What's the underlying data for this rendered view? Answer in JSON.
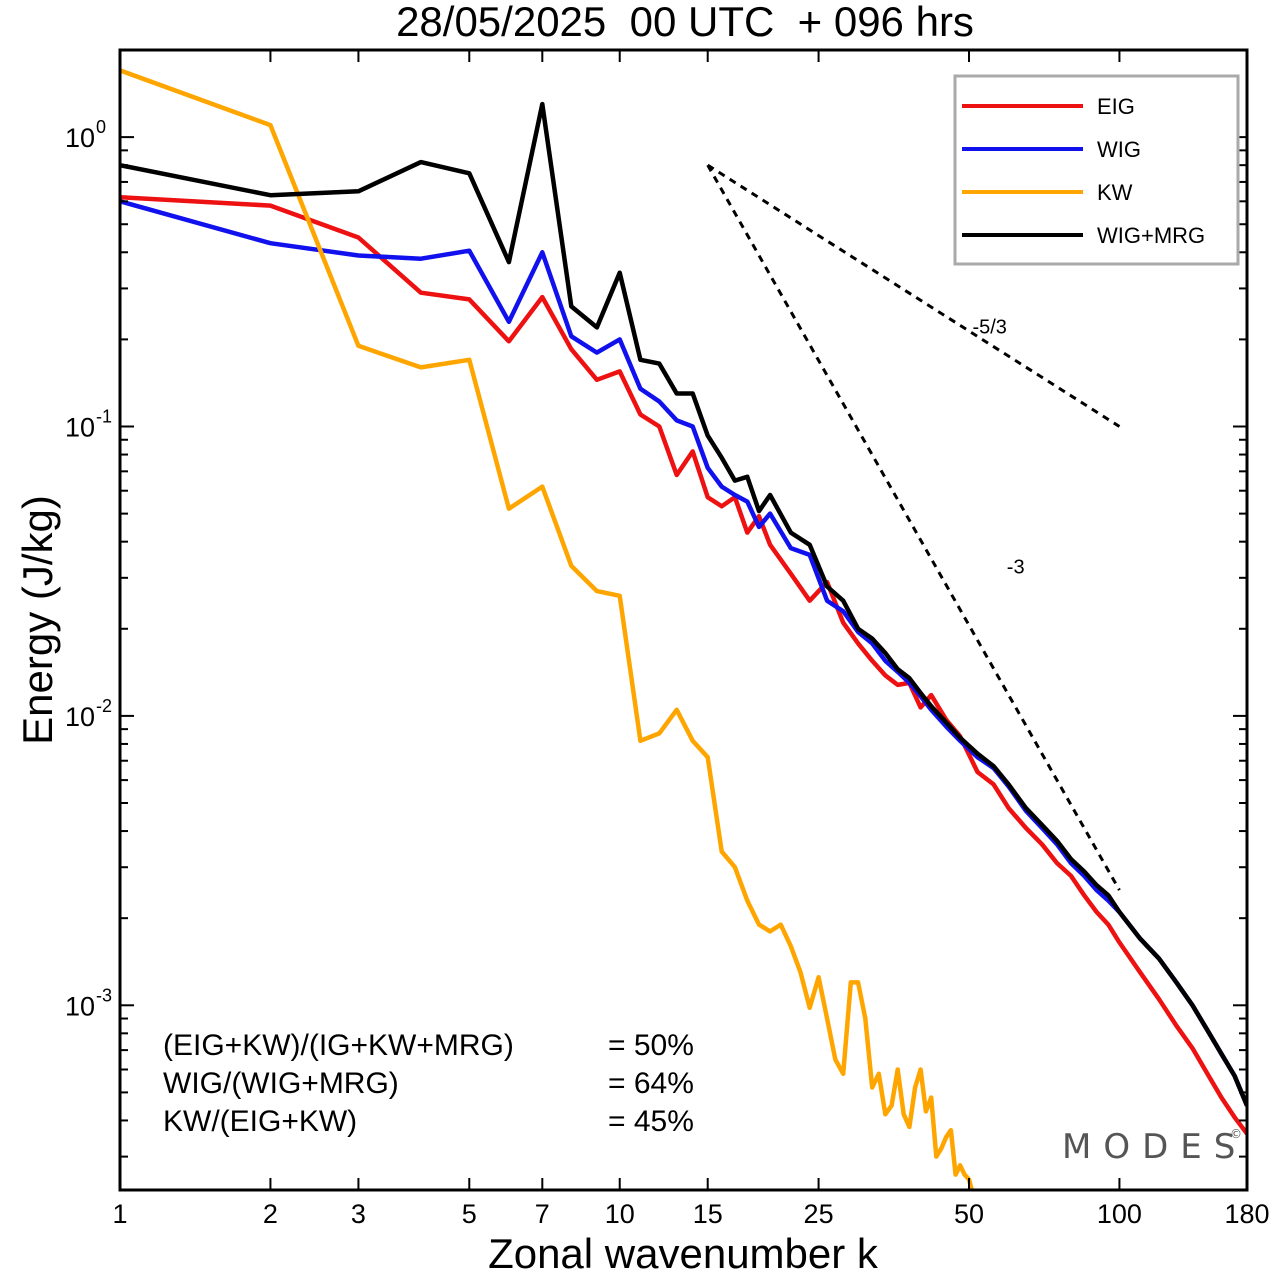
{
  "chart_data": {
    "type": "line",
    "title": "28/05/2025  00 UTC  + 096 hrs",
    "xlabel": "Zonal wavenumber k",
    "ylabel": "Energy (J/kg)",
    "xscale": "log",
    "yscale": "log",
    "xlim": [
      1,
      180
    ],
    "ylim": [
      0.00023,
      2.0
    ],
    "x_ticks": [
      1,
      2,
      3,
      5,
      7,
      10,
      15,
      25,
      50,
      100,
      180
    ],
    "x_tick_labels": [
      "1",
      "2",
      "3",
      "5",
      "7",
      "10",
      "15",
      "25",
      "50",
      "100",
      "180"
    ],
    "y_ticks": [
      {
        "value": 1,
        "base": "10",
        "exp": "0"
      },
      {
        "value": 0.1,
        "base": "10",
        "exp": "-1"
      },
      {
        "value": 0.01,
        "base": "10",
        "exp": "-2"
      },
      {
        "value": 0.001,
        "base": "10",
        "exp": "-3"
      }
    ],
    "legend_position": "top-right",
    "grid": false,
    "series": [
      {
        "name": "EIG",
        "color": "#ee1111",
        "points": [
          [
            1,
            0.62
          ],
          [
            2,
            0.58
          ],
          [
            3,
            0.45
          ],
          [
            4,
            0.29
          ],
          [
            5,
            0.275
          ],
          [
            6,
            0.197
          ],
          [
            7,
            0.28
          ],
          [
            8,
            0.185
          ],
          [
            9,
            0.145
          ],
          [
            10,
            0.155
          ],
          [
            11,
            0.11
          ],
          [
            12,
            0.1
          ],
          [
            13,
            0.068
          ],
          [
            14,
            0.082
          ],
          [
            15,
            0.057
          ],
          [
            16,
            0.053
          ],
          [
            17,
            0.057
          ],
          [
            18,
            0.043
          ],
          [
            19,
            0.049
          ],
          [
            20,
            0.039
          ],
          [
            22,
            0.031
          ],
          [
            24,
            0.025
          ],
          [
            26,
            0.029
          ],
          [
            28,
            0.021
          ],
          [
            30,
            0.0178
          ],
          [
            32,
            0.0155
          ],
          [
            34,
            0.0138
          ],
          [
            36,
            0.0128
          ],
          [
            38,
            0.013
          ],
          [
            40,
            0.0107
          ],
          [
            42,
            0.0118
          ],
          [
            45,
            0.0097
          ],
          [
            48,
            0.0085
          ],
          [
            52,
            0.0064
          ],
          [
            56,
            0.0058
          ],
          [
            60,
            0.0048
          ],
          [
            65,
            0.0041
          ],
          [
            70,
            0.0036
          ],
          [
            75,
            0.0031
          ],
          [
            80,
            0.0028
          ],
          [
            85,
            0.0024
          ],
          [
            90,
            0.0021
          ],
          [
            95,
            0.0019
          ],
          [
            100,
            0.00165
          ],
          [
            110,
            0.0013
          ],
          [
            120,
            0.00105
          ],
          [
            130,
            0.00085
          ],
          [
            140,
            0.00071
          ],
          [
            150,
            0.00058
          ],
          [
            160,
            0.00048
          ],
          [
            170,
            0.00041
          ],
          [
            180,
            0.00036
          ]
        ]
      },
      {
        "name": "WIG",
        "color": "#1111ee",
        "points": [
          [
            1,
            0.6
          ],
          [
            2,
            0.43
          ],
          [
            3,
            0.39
          ],
          [
            4,
            0.38
          ],
          [
            5,
            0.405
          ],
          [
            6,
            0.23
          ],
          [
            7,
            0.4
          ],
          [
            8,
            0.205
          ],
          [
            9,
            0.18
          ],
          [
            10,
            0.2
          ],
          [
            11,
            0.135
          ],
          [
            12,
            0.122
          ],
          [
            13,
            0.105
          ],
          [
            14,
            0.1
          ],
          [
            15,
            0.072
          ],
          [
            16,
            0.062
          ],
          [
            17,
            0.058
          ],
          [
            18,
            0.055
          ],
          [
            19,
            0.045
          ],
          [
            20,
            0.05
          ],
          [
            22,
            0.038
          ],
          [
            24,
            0.036
          ],
          [
            26,
            0.025
          ],
          [
            28,
            0.023
          ],
          [
            30,
            0.0195
          ],
          [
            32,
            0.0178
          ],
          [
            34,
            0.0155
          ],
          [
            36,
            0.0142
          ],
          [
            38,
            0.013
          ],
          [
            40,
            0.0117
          ],
          [
            42,
            0.0105
          ],
          [
            45,
            0.0092
          ],
          [
            48,
            0.0082
          ],
          [
            52,
            0.0072
          ],
          [
            56,
            0.0066
          ],
          [
            60,
            0.0057
          ],
          [
            65,
            0.0047
          ],
          [
            70,
            0.0041
          ],
          [
            75,
            0.0036
          ],
          [
            80,
            0.0031
          ],
          [
            85,
            0.0028
          ],
          [
            90,
            0.0025
          ],
          [
            95,
            0.0023
          ],
          [
            100,
            0.0021
          ],
          [
            110,
            0.0017
          ],
          [
            120,
            0.00145
          ],
          [
            130,
            0.0012
          ],
          [
            140,
            0.001
          ],
          [
            150,
            0.00082
          ],
          [
            160,
            0.00068
          ],
          [
            170,
            0.00057
          ],
          [
            180,
            0.00045
          ]
        ]
      },
      {
        "name": "KW",
        "color": "#ffa500",
        "points": [
          [
            1,
            1.7
          ],
          [
            2,
            1.1
          ],
          [
            3,
            0.19
          ],
          [
            4,
            0.16
          ],
          [
            5,
            0.17
          ],
          [
            6,
            0.052
          ],
          [
            7,
            0.062
          ],
          [
            8,
            0.033
          ],
          [
            9,
            0.027
          ],
          [
            10,
            0.026
          ],
          [
            11,
            0.0082
          ],
          [
            12,
            0.0087
          ],
          [
            13,
            0.0105
          ],
          [
            14,
            0.0082
          ],
          [
            15,
            0.0072
          ],
          [
            16,
            0.0034
          ],
          [
            17,
            0.003
          ],
          [
            18,
            0.0023
          ],
          [
            19,
            0.0019
          ],
          [
            20,
            0.0018
          ],
          [
            21,
            0.0019
          ],
          [
            22,
            0.0016
          ],
          [
            23,
            0.0013
          ],
          [
            24,
            0.00098
          ],
          [
            25,
            0.00125
          ],
          [
            26,
            0.0009
          ],
          [
            27,
            0.00065
          ],
          [
            28,
            0.00058
          ],
          [
            29,
            0.0012
          ],
          [
            30,
            0.0012
          ],
          [
            31,
            0.0009
          ],
          [
            32,
            0.00052
          ],
          [
            33,
            0.00058
          ],
          [
            34,
            0.00042
          ],
          [
            35,
            0.00045
          ],
          [
            36,
            0.0006
          ],
          [
            37,
            0.00042
          ],
          [
            38,
            0.00038
          ],
          [
            39,
            0.00052
          ],
          [
            40,
            0.0006
          ],
          [
            41,
            0.00043
          ],
          [
            42,
            0.00048
          ],
          [
            43,
            0.0003
          ],
          [
            44,
            0.00032
          ],
          [
            45,
            0.00035
          ],
          [
            46,
            0.00037
          ],
          [
            47,
            0.00026
          ],
          [
            48,
            0.00028
          ],
          [
            49,
            0.00026
          ],
          [
            50,
            0.00025
          ],
          [
            51,
            0.00022
          ]
        ]
      },
      {
        "name": "WIG+MRG",
        "color": "#000000",
        "points": [
          [
            1,
            0.8
          ],
          [
            2,
            0.63
          ],
          [
            3,
            0.65
          ],
          [
            4,
            0.82
          ],
          [
            5,
            0.75
          ],
          [
            6,
            0.37
          ],
          [
            7,
            1.3
          ],
          [
            8,
            0.26
          ],
          [
            9,
            0.22
          ],
          [
            10,
            0.34
          ],
          [
            11,
            0.17
          ],
          [
            12,
            0.165
          ],
          [
            13,
            0.13
          ],
          [
            14,
            0.13
          ],
          [
            15,
            0.093
          ],
          [
            16,
            0.078
          ],
          [
            17,
            0.065
          ],
          [
            18,
            0.067
          ],
          [
            19,
            0.051
          ],
          [
            20,
            0.058
          ],
          [
            22,
            0.043
          ],
          [
            24,
            0.039
          ],
          [
            26,
            0.028
          ],
          [
            28,
            0.025
          ],
          [
            30,
            0.02
          ],
          [
            32,
            0.0185
          ],
          [
            34,
            0.0165
          ],
          [
            36,
            0.0145
          ],
          [
            38,
            0.0135
          ],
          [
            40,
            0.012
          ],
          [
            42,
            0.0108
          ],
          [
            45,
            0.0095
          ],
          [
            48,
            0.0084
          ],
          [
            52,
            0.0074
          ],
          [
            56,
            0.0067
          ],
          [
            60,
            0.0058
          ],
          [
            65,
            0.0048
          ],
          [
            70,
            0.0042
          ],
          [
            75,
            0.0037
          ],
          [
            80,
            0.0032
          ],
          [
            85,
            0.0029
          ],
          [
            90,
            0.0026
          ],
          [
            95,
            0.0024
          ],
          [
            100,
            0.0021
          ],
          [
            110,
            0.0017
          ],
          [
            120,
            0.00145
          ],
          [
            130,
            0.0012
          ],
          [
            140,
            0.001
          ],
          [
            150,
            0.00082
          ],
          [
            160,
            0.00068
          ],
          [
            170,
            0.00057
          ],
          [
            180,
            0.00045
          ]
        ]
      }
    ],
    "reference_lines": [
      {
        "label": "-5/3",
        "points": [
          [
            15,
            0.8
          ],
          [
            100,
            0.1
          ]
        ],
        "label_at": [
          55,
          0.21
        ]
      },
      {
        "label": "-3",
        "points": [
          [
            15,
            0.8
          ],
          [
            100,
            0.0025
          ]
        ],
        "label_at": [
          62,
          0.031
        ]
      }
    ],
    "annotations": [
      {
        "left": "(EIG+KW)/(IG+KW+MRG)",
        "right": "= 50%"
      },
      {
        "left": "WIG/(WIG+MRG)",
        "right": "= 64%"
      },
      {
        "left": "KW/(EIG+KW)",
        "right": "= 45%"
      }
    ],
    "watermark": "MODES",
    "watermark_mark": "©"
  }
}
